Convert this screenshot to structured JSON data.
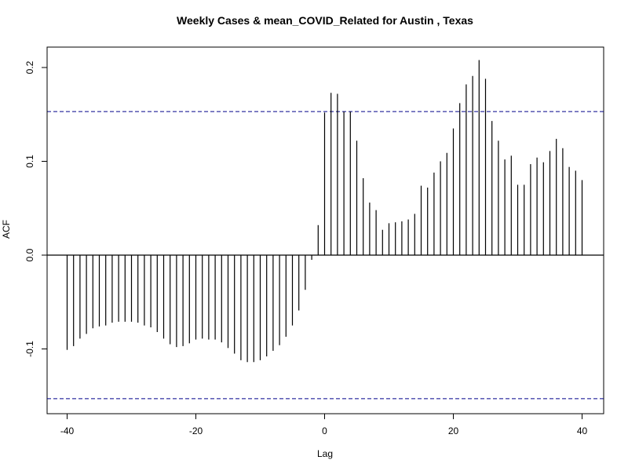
{
  "chart_data": {
    "type": "bar",
    "title": "Weekly Cases & mean_COVID_Related for Austin , Texas",
    "xlabel": "Lag",
    "ylabel": "ACF",
    "xlim": [
      -40,
      40
    ],
    "ylim": [
      -0.16,
      0.21
    ],
    "x_ticks": [
      -40,
      -20,
      0,
      20,
      40
    ],
    "x_tick_labels": [
      "-40",
      "-20",
      "0",
      "20",
      "40"
    ],
    "y_ticks": [
      -0.1,
      0.0,
      0.1,
      0.2
    ],
    "y_tick_labels": [
      "-0.1",
      "0.0",
      "0.1",
      "0.2"
    ],
    "confidence_bound": 0.153,
    "confidence_line_color": "#00008b",
    "bar_color": "#000000",
    "lags": [
      -40,
      -39,
      -38,
      -37,
      -36,
      -35,
      -34,
      -33,
      -32,
      -31,
      -30,
      -29,
      -28,
      -27,
      -26,
      -25,
      -24,
      -23,
      -22,
      -21,
      -20,
      -19,
      -18,
      -17,
      -16,
      -15,
      -14,
      -13,
      -12,
      -11,
      -10,
      -9,
      -8,
      -7,
      -6,
      -5,
      -4,
      -3,
      -2,
      -1,
      0,
      1,
      2,
      3,
      4,
      5,
      6,
      7,
      8,
      9,
      10,
      11,
      12,
      13,
      14,
      15,
      16,
      17,
      18,
      19,
      20,
      21,
      22,
      23,
      24,
      25,
      26,
      27,
      28,
      29,
      30,
      31,
      32,
      33,
      34,
      35,
      36,
      37,
      38,
      39,
      40
    ],
    "values": [
      -0.101,
      -0.097,
      -0.089,
      -0.084,
      -0.078,
      -0.076,
      -0.075,
      -0.072,
      -0.071,
      -0.071,
      -0.071,
      -0.072,
      -0.075,
      -0.077,
      -0.082,
      -0.089,
      -0.095,
      -0.098,
      -0.097,
      -0.094,
      -0.09,
      -0.089,
      -0.09,
      -0.09,
      -0.093,
      -0.099,
      -0.105,
      -0.112,
      -0.114,
      -0.114,
      -0.112,
      -0.108,
      -0.102,
      -0.096,
      -0.087,
      -0.075,
      -0.059,
      -0.037,
      -0.005,
      0.032,
      0.152,
      0.173,
      0.172,
      0.153,
      0.153,
      0.122,
      0.082,
      0.056,
      0.048,
      0.027,
      0.034,
      0.035,
      0.036,
      0.038,
      0.044,
      0.074,
      0.072,
      0.088,
      0.1,
      0.109,
      0.135,
      0.162,
      0.182,
      0.191,
      0.208,
      0.188,
      0.143,
      0.122,
      0.102,
      0.106,
      0.075,
      0.075,
      0.097,
      0.104,
      0.099,
      0.111,
      0.124,
      0.114,
      0.094,
      0.09,
      0.08
    ]
  }
}
